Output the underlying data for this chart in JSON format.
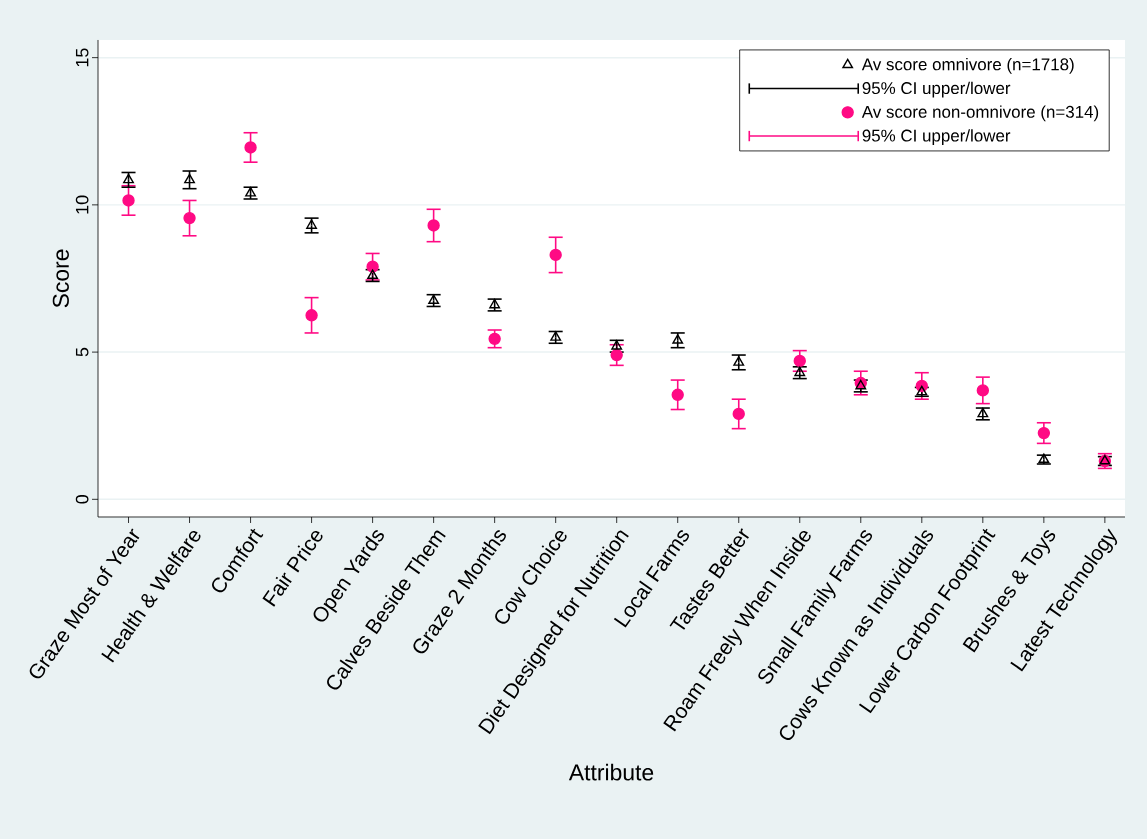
{
  "chart_data": {
    "type": "scatter",
    "xlabel": "Attribute",
    "ylabel": "Score",
    "categories": [
      "Graze Most of Year",
      "Health & Welfare",
      "Comfort",
      "Fair Price",
      "Open Yards",
      "Calves Beside Them",
      "Graze 2 Months",
      "Cow Choice",
      "Diet Designed for Nutrition",
      "Local Farms",
      "Tastes Better",
      "Roam Freely When Inside",
      "Small Family Farms",
      "Cows Known as Individuals",
      "Lower Carbon Footprint",
      "Brushes & Toys",
      "Latest Technology"
    ],
    "series": [
      {
        "name": "Av score omnivore (n=1718)",
        "color": "#000000",
        "marker": "triangle",
        "values": [
          10.85,
          10.85,
          10.4,
          9.3,
          7.6,
          6.75,
          6.6,
          5.5,
          5.2,
          5.4,
          4.65,
          4.3,
          3.85,
          3.65,
          2.9,
          1.35,
          1.3
        ],
        "errors": [
          0.25,
          0.3,
          0.2,
          0.25,
          0.2,
          0.2,
          0.2,
          0.2,
          0.2,
          0.25,
          0.25,
          0.2,
          0.2,
          0.15,
          0.2,
          0.15,
          0.15
        ]
      },
      {
        "name": "Av score non-omnivore (n=314)",
        "color": "#ff0a84",
        "marker": "circle",
        "values": [
          10.15,
          9.55,
          11.95,
          6.25,
          7.9,
          9.3,
          5.45,
          8.3,
          4.9,
          3.55,
          2.9,
          4.7,
          3.95,
          3.85,
          3.7,
          2.25,
          1.3
        ],
        "errors": [
          0.5,
          0.6,
          0.5,
          0.6,
          0.45,
          0.55,
          0.3,
          0.6,
          0.35,
          0.5,
          0.5,
          0.35,
          0.4,
          0.45,
          0.45,
          0.35,
          0.25
        ]
      }
    ],
    "annotations": [
      "95% CI upper/lower",
      "95% CI upper/lower"
    ],
    "ylim": [
      -0.6,
      15.6
    ],
    "yticks": [
      0,
      5,
      10,
      15
    ],
    "grid": "y",
    "legend": "top right"
  }
}
